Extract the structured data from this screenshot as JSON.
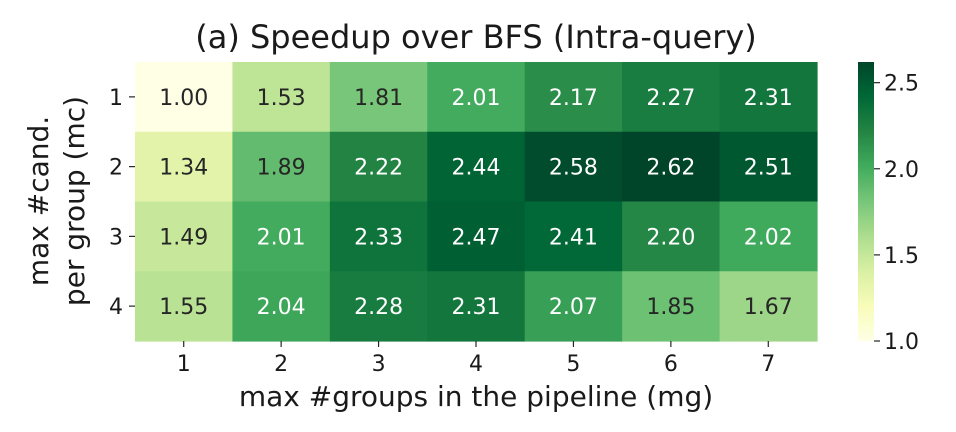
{
  "chart_data": {
    "type": "heatmap",
    "title": "(a) Speedup over BFS (Intra-query)",
    "xlabel": "max #groups in the pipeline (mg)",
    "ylabel_lines": [
      "max #cand.",
      "per group (mc)"
    ],
    "x_categories": [
      "1",
      "2",
      "3",
      "4",
      "5",
      "6",
      "7"
    ],
    "y_categories": [
      "1",
      "2",
      "3",
      "4"
    ],
    "values": [
      [
        1.0,
        1.53,
        1.81,
        2.01,
        2.17,
        2.27,
        2.31
      ],
      [
        1.34,
        1.89,
        2.22,
        2.44,
        2.58,
        2.62,
        2.51
      ],
      [
        1.49,
        2.01,
        2.33,
        2.47,
        2.41,
        2.2,
        2.02
      ],
      [
        1.55,
        2.04,
        2.28,
        2.31,
        2.07,
        1.85,
        1.67
      ]
    ],
    "value_format_decimals": 2,
    "colormap": "YlGn",
    "color_range": [
      1.0,
      2.62
    ],
    "colorbar_ticks": [
      "1.0",
      "1.5",
      "2.0",
      "2.5"
    ],
    "colorbar_tick_values": [
      1.0,
      1.5,
      2.0,
      2.5
    ],
    "colorbar_stops": [
      "#ffffe5",
      "#f7fcb9",
      "#d9f0a3",
      "#addd8e",
      "#78c679",
      "#41ab5d",
      "#238443",
      "#006837",
      "#004529"
    ],
    "text_light_color": "#ffffff",
    "text_dark_color": "#262626"
  }
}
